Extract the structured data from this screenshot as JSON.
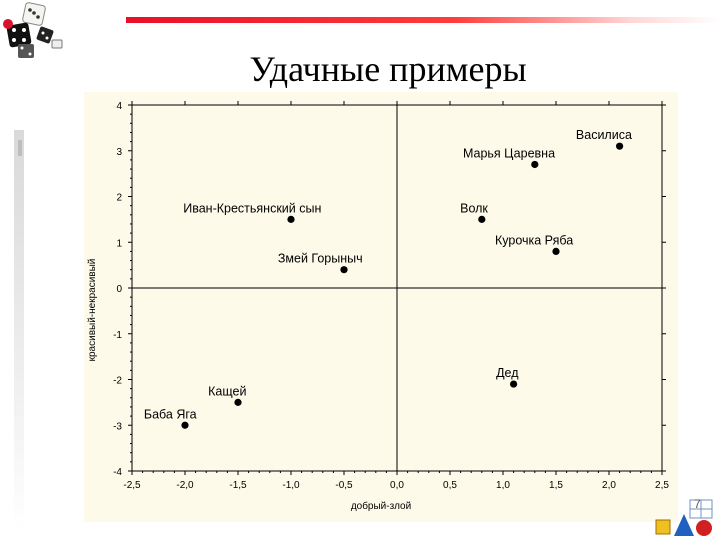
{
  "slide": {
    "title": "Удачные примеры",
    "page_number": "7"
  },
  "colors": {
    "accent_bar": "#e8102a",
    "chart_bg": "#fdfaea",
    "marker": "#000000"
  },
  "chart_data": {
    "type": "scatter",
    "title": "",
    "xlabel": "добрый-злой",
    "ylabel": "красивый-некрасивый",
    "xlim": [
      -2.5,
      2.5
    ],
    "ylim": [
      -4,
      4
    ],
    "xticks": [
      "-2,5",
      "-2,0",
      "-1,5",
      "-1,0",
      "-0,5",
      "0,0",
      "0,5",
      "1,0",
      "1,5",
      "2,0",
      "2,5"
    ],
    "yticks": [
      "4",
      "3",
      "2",
      "1",
      "0",
      "-1",
      "-2",
      "-3",
      "-4"
    ],
    "grid": false,
    "points": [
      {
        "label": "Василиса",
        "x": 2.1,
        "y": 3.1
      },
      {
        "label": "Марья Царевна",
        "x": 1.3,
        "y": 2.7
      },
      {
        "label": "Иван-Крестьянский сын",
        "x": -1.0,
        "y": 1.5
      },
      {
        "label": "Волк",
        "x": 0.8,
        "y": 1.5
      },
      {
        "label": "Курочка Ряба",
        "x": 1.5,
        "y": 0.8
      },
      {
        "label": "Змей Горыныч",
        "x": -0.5,
        "y": 0.4
      },
      {
        "label": "Дед",
        "x": 1.1,
        "y": -2.1
      },
      {
        "label": "Кащей",
        "x": -1.5,
        "y": -2.5
      },
      {
        "label": "Баба Яга",
        "x": -2.0,
        "y": -3.0
      }
    ]
  }
}
